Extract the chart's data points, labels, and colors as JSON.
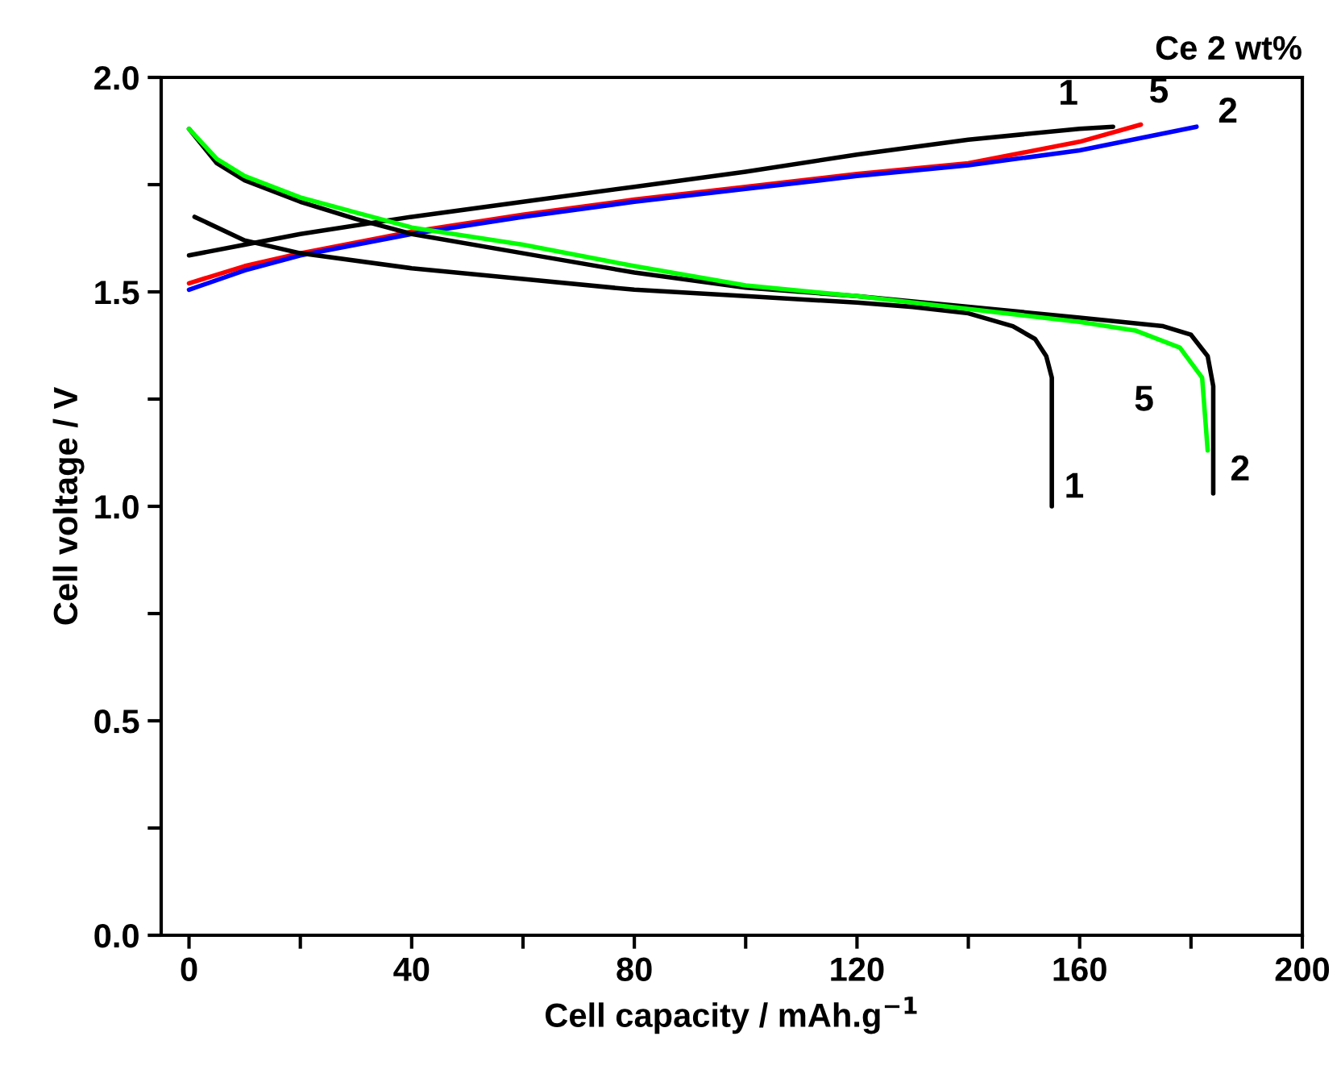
{
  "chart_data": {
    "type": "line",
    "title": "Ce 2 wt%",
    "xlabel": "Cell capacity / mAh.g$^{−1}$",
    "ylabel": "Cell voltage / V",
    "xlim": [
      -5,
      200
    ],
    "ylim": [
      0,
      2.0
    ],
    "xticks": [
      0,
      {
        "value": 20,
        "label": null
      },
      40,
      {
        "value": 60,
        "label": null
      },
      80,
      {
        "value": 100,
        "label": null
      },
      120,
      {
        "value": 140,
        "label": null
      },
      160,
      {
        "value": 180,
        "label": null
      },
      200
    ],
    "yticks": [
      {
        "value": 0,
        "label": "0.0"
      },
      {
        "value": 0.25,
        "label": null
      },
      0.5,
      {
        "value": 0.75,
        "label": null
      },
      {
        "value": 1,
        "label": "1.0"
      },
      {
        "value": 1.25,
        "label": null
      },
      1.5,
      {
        "value": 1.75,
        "label": null
      },
      {
        "value": 2,
        "label": "2.0"
      }
    ],
    "grid": false,
    "legend": false,
    "line_style": "solid",
    "marker": "none",
    "series": [
      {
        "name": "1",
        "color": "#000000",
        "x": [
          0,
          10,
          20,
          40,
          60,
          80,
          100,
          120,
          140,
          160,
          166
        ],
        "values": [
          1.585,
          1.61,
          1.635,
          1.675,
          1.71,
          1.745,
          1.78,
          1.82,
          1.855,
          1.88,
          1.885
        ]
      },
      {
        "name": "5",
        "color": "#ff0000",
        "x": [
          0,
          10,
          20,
          40,
          60,
          80,
          100,
          120,
          140,
          160,
          171
        ],
        "values": [
          1.52,
          1.56,
          1.59,
          1.64,
          1.68,
          1.715,
          1.745,
          1.775,
          1.8,
          1.85,
          1.89
        ]
      },
      {
        "name": "2",
        "color": "#0000ff",
        "x": [
          0,
          10,
          20,
          40,
          60,
          80,
          100,
          120,
          140,
          160,
          181
        ],
        "values": [
          1.505,
          1.55,
          1.585,
          1.635,
          1.675,
          1.71,
          1.74,
          1.77,
          1.795,
          1.83,
          1.885
        ]
      },
      {
        "name": "1",
        "color": "#000000",
        "x": [
          1,
          10,
          20,
          40,
          60,
          80,
          100,
          120,
          130,
          140,
          148,
          152,
          154,
          155,
          155
        ],
        "values": [
          1.675,
          1.62,
          1.59,
          1.555,
          1.53,
          1.505,
          1.49,
          1.475,
          1.465,
          1.45,
          1.42,
          1.39,
          1.35,
          1.3,
          1.0
        ]
      },
      {
        "name": "2",
        "color": "#000000",
        "x": [
          0,
          5,
          10,
          20,
          30,
          40,
          60,
          80,
          100,
          120,
          140,
          160,
          175,
          180,
          183,
          184,
          184
        ],
        "values": [
          1.88,
          1.8,
          1.76,
          1.71,
          1.67,
          1.635,
          1.59,
          1.545,
          1.51,
          1.49,
          1.465,
          1.44,
          1.42,
          1.4,
          1.35,
          1.28,
          1.03
        ]
      },
      {
        "name": "5",
        "color": "#00ff00",
        "x": [
          0,
          5,
          10,
          20,
          30,
          40,
          60,
          80,
          100,
          120,
          140,
          160,
          170,
          178,
          182,
          183
        ],
        "values": [
          1.88,
          1.81,
          1.77,
          1.72,
          1.685,
          1.65,
          1.61,
          1.56,
          1.515,
          1.49,
          1.46,
          1.43,
          1.41,
          1.37,
          1.3,
          1.13
        ]
      }
    ]
  }
}
